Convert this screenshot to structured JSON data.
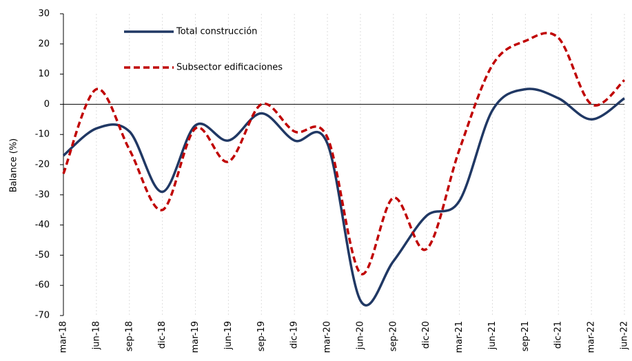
{
  "chart_data": {
    "type": "line",
    "y_label": "Balance (%)",
    "categories": [
      "mar-18",
      "jun-18",
      "sep-18",
      "dic-18",
      "mar-19",
      "jun-19",
      "sep-19",
      "dic-19",
      "mar-20",
      "jun-20",
      "sep-20",
      "dic-20",
      "mar-21",
      "jun-21",
      "sep-21",
      "dic-21",
      "mar-22",
      "jun-22"
    ],
    "series": [
      {
        "name": "Total construcción",
        "color": "#203864",
        "dash": "solid",
        "values": [
          -17,
          -8,
          -9,
          -29,
          -7,
          -12,
          -3,
          -12,
          -13,
          -65,
          -52,
          -37,
          -32,
          -2,
          5,
          2,
          -5,
          2
        ]
      },
      {
        "name": "Subsector edificaciones",
        "color": "#c00000",
        "dash": "dashed",
        "values": [
          -23,
          5,
          -15,
          -35,
          -8,
          -19,
          0,
          -9,
          -11,
          -56,
          -31,
          -48,
          -15,
          13,
          21,
          22,
          0,
          8
        ]
      }
    ],
    "ylim": [
      -70,
      30
    ],
    "yticks": [
      -70,
      -60,
      -50,
      -40,
      -30,
      -20,
      -10,
      0,
      10,
      20,
      30
    ],
    "legend": "upper left",
    "grid": true
  }
}
